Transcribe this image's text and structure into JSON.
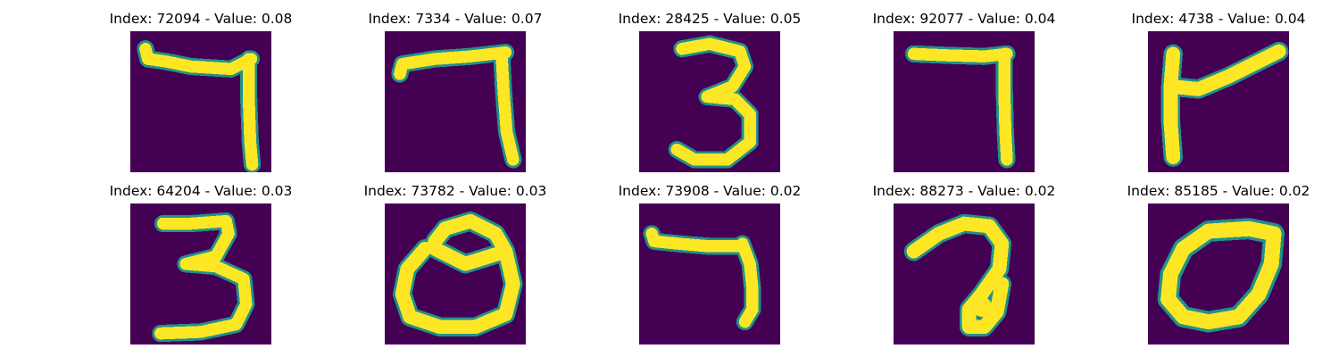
{
  "colors": {
    "background": "#440154",
    "edge_mid": "#21918c",
    "edge_light": "#5ec962",
    "stroke": "#fde725"
  },
  "images": [
    {
      "title": "Index: 72094 - Value: 0.08",
      "shape": "seven-hook",
      "colormap": "viridis"
    },
    {
      "title": "Index: 7334 - Value: 0.07",
      "shape": "seven-flat",
      "colormap": "viridis"
    },
    {
      "title": "Index: 28425 - Value: 0.05",
      "shape": "three-small",
      "colormap": "viridis"
    },
    {
      "title": "Index: 92077 - Value: 0.04",
      "shape": "seven-straight",
      "colormap": "viridis"
    },
    {
      "title": "Index: 4738 - Value: 0.04",
      "shape": "angled-check",
      "colormap": "viridis"
    },
    {
      "title": "Index: 64204 - Value: 0.03",
      "shape": "three-large",
      "colormap": "viridis"
    },
    {
      "title": "Index: 73782 - Value: 0.03",
      "shape": "loop-d",
      "colormap": "viridis"
    },
    {
      "title": "Index: 73908 - Value: 0.02",
      "shape": "seven-short",
      "colormap": "viridis"
    },
    {
      "title": "Index: 88273 - Value: 0.02",
      "shape": "two-loop",
      "colormap": "viridis"
    },
    {
      "title": "Index: 85185 - Value: 0.02",
      "shape": "zero-loop",
      "colormap": "viridis"
    }
  ]
}
